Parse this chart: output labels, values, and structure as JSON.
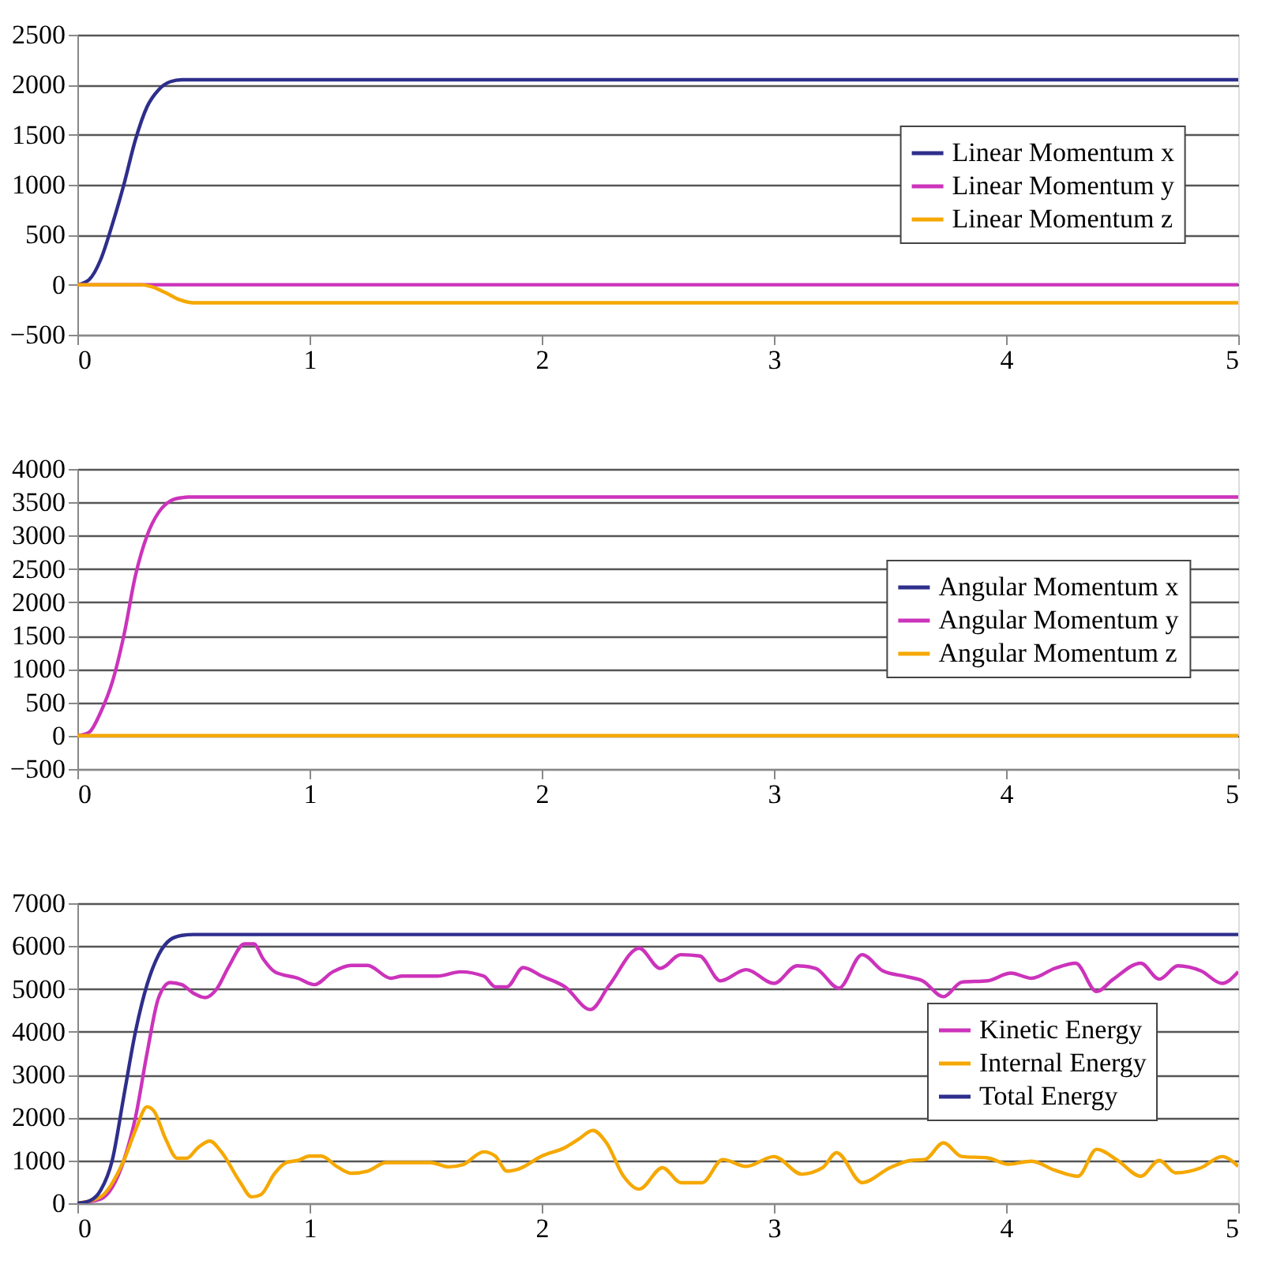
{
  "chart_data": [
    {
      "type": "line",
      "xlim": [
        0,
        5
      ],
      "xticks": [
        0,
        1,
        2,
        3,
        4,
        5
      ],
      "ylim": [
        -500,
        2500
      ],
      "yticks": [
        -500,
        0,
        500,
        1000,
        1500,
        2000,
        2500
      ],
      "grid": "y",
      "legend": "right",
      "line_style": "solid",
      "series": [
        {
          "name": "Linear Momentum x",
          "color": "#2e2e8c",
          "x": [
            0,
            0.05,
            0.1,
            0.15,
            0.2,
            0.25,
            0.3,
            0.35,
            0.4,
            0.45,
            0.5,
            5
          ],
          "values": [
            0,
            50,
            250,
            600,
            1000,
            1450,
            1780,
            1950,
            2030,
            2050,
            2050,
            2050
          ]
        },
        {
          "name": "Linear Momentum y",
          "color": "#cc33bb",
          "x": [
            0,
            5
          ],
          "values": [
            0,
            0
          ]
        },
        {
          "name": "Linear Momentum z",
          "color": "#f5a800",
          "x": [
            0,
            0.27,
            0.32,
            0.38,
            0.44,
            0.5,
            5
          ],
          "values": [
            0,
            0,
            -20,
            -80,
            -150,
            -180,
            -180
          ]
        }
      ]
    },
    {
      "type": "line",
      "xlim": [
        0,
        5
      ],
      "xticks": [
        0,
        1,
        2,
        3,
        4,
        5
      ],
      "ylim": [
        -500,
        4000
      ],
      "yticks": [
        -500,
        0,
        500,
        1000,
        1500,
        2000,
        2500,
        3000,
        3500,
        4000
      ],
      "grid": "y",
      "legend": "right",
      "line_style": "solid",
      "series": [
        {
          "name": "Angular Momentum x",
          "color": "#2e2e8c"
        },
        {
          "name": "Angular Momentum y",
          "color": "#cc33bb",
          "x": [
            0,
            0.05,
            0.1,
            0.15,
            0.2,
            0.25,
            0.3,
            0.35,
            0.4,
            0.45,
            0.48,
            5
          ],
          "values": [
            0,
            50,
            350,
            800,
            1500,
            2400,
            3000,
            3350,
            3520,
            3570,
            3580,
            3580
          ]
        },
        {
          "name": "Angular Momentum z",
          "color": "#f5a800",
          "x": [
            0,
            5
          ],
          "values": [
            0,
            0
          ]
        }
      ]
    },
    {
      "type": "line",
      "xlim": [
        0,
        5
      ],
      "xticks": [
        0,
        1,
        2,
        3,
        4,
        5
      ],
      "ylim": [
        0,
        7000
      ],
      "yticks": [
        0,
        1000,
        2000,
        3000,
        4000,
        5000,
        6000,
        7000
      ],
      "grid": "y",
      "legend": "bottom right",
      "line_style": "solid",
      "series": [
        {
          "name": "Kinetic Energy",
          "color": "#cc33bb",
          "x": [
            0,
            0.1,
            0.2,
            0.25,
            0.3,
            0.35,
            0.4,
            0.45,
            0.5,
            0.55,
            0.6,
            0.65,
            0.72,
            0.76,
            0.8,
            0.85,
            0.95,
            1.02,
            1.1,
            1.18,
            1.25,
            1.35,
            1.4,
            1.55,
            1.65,
            1.75,
            1.8,
            1.85,
            1.92,
            2.0,
            2.1,
            2.21,
            2.29,
            2.42,
            2.51,
            2.6,
            2.68,
            2.77,
            2.88,
            3.0,
            3.1,
            3.18,
            3.28,
            3.38,
            3.47,
            3.57,
            3.64,
            3.73,
            3.81,
            3.92,
            4.02,
            4.11,
            4.21,
            4.3,
            4.39,
            4.46,
            4.58,
            4.66,
            4.74,
            4.84,
            4.93,
            5.0
          ],
          "values": [
            0,
            100,
            1000,
            2000,
            3500,
            4800,
            5150,
            5100,
            4900,
            4800,
            5000,
            5500,
            6050,
            6050,
            5700,
            5400,
            5250,
            5100,
            5400,
            5550,
            5550,
            5250,
            5300,
            5300,
            5400,
            5300,
            5050,
            5050,
            5500,
            5300,
            5050,
            4520,
            5080,
            5950,
            5480,
            5800,
            5770,
            5190,
            5450,
            5130,
            5540,
            5480,
            5020,
            5800,
            5420,
            5290,
            5190,
            4820,
            5160,
            5190,
            5370,
            5250,
            5480,
            5600,
            4940,
            5220,
            5600,
            5230,
            5540,
            5420,
            5130,
            5400
          ]
        },
        {
          "name": "Internal Energy",
          "color": "#f5a800",
          "x": [
            0,
            0.1,
            0.2,
            0.25,
            0.3,
            0.33,
            0.38,
            0.43,
            0.47,
            0.52,
            0.57,
            0.62,
            0.7,
            0.75,
            0.79,
            0.85,
            0.9,
            0.95,
            1.0,
            1.05,
            1.12,
            1.18,
            1.25,
            1.33,
            1.4,
            1.52,
            1.6,
            1.66,
            1.75,
            1.8,
            1.85,
            1.9,
            2.0,
            2.1,
            2.16,
            2.22,
            2.28,
            2.35,
            2.42,
            2.52,
            2.6,
            2.69,
            2.78,
            2.88,
            3.0,
            3.12,
            3.21,
            3.27,
            3.38,
            3.5,
            3.59,
            3.65,
            3.73,
            3.81,
            3.92,
            4.01,
            4.11,
            4.21,
            4.31,
            4.39,
            4.48,
            4.58,
            4.66,
            4.73,
            4.84,
            4.93,
            5.0
          ],
          "values": [
            0,
            150,
            1000,
            1700,
            2250,
            2150,
            1500,
            1050,
            1050,
            1300,
            1450,
            1200,
            500,
            150,
            200,
            700,
            950,
            1000,
            1100,
            1100,
            850,
            700,
            750,
            950,
            950,
            950,
            850,
            900,
            1200,
            1100,
            750,
            800,
            1100,
            1300,
            1500,
            1700,
            1400,
            650,
            330,
            830,
            480,
            480,
            1020,
            860,
            1090,
            680,
            830,
            1180,
            480,
            830,
            1000,
            1020,
            1410,
            1090,
            1060,
            910,
            980,
            770,
            630,
            1260,
            1000,
            630,
            1000,
            710,
            830,
            1090,
            860
          ]
        },
        {
          "name": "Total Energy",
          "color": "#2e2e8c",
          "x": [
            0,
            0.05,
            0.1,
            0.15,
            0.2,
            0.25,
            0.3,
            0.35,
            0.4,
            0.45,
            0.5,
            5
          ],
          "values": [
            0,
            50,
            300,
            1000,
            2500,
            4000,
            5100,
            5800,
            6150,
            6250,
            6270,
            6270
          ]
        }
      ]
    }
  ]
}
